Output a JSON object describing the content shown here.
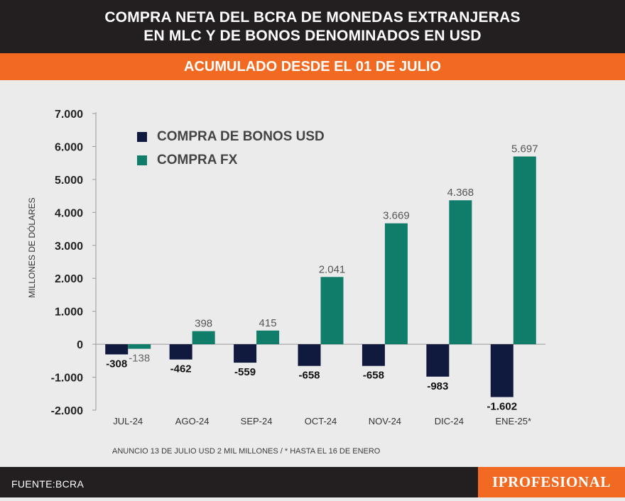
{
  "header": {
    "title_line1": "COMPRA NETA DEL BCRA DE MONEDAS EXTRANJERAS",
    "title_line2": "EN MLC Y DE BONOS DENOMINADOS EN USD",
    "subtitle": "ACUMULADO DESDE EL 01 DE JULIO"
  },
  "chart_data": {
    "type": "bar",
    "categories": [
      "JUL-24",
      "AGO-24",
      "SEP-24",
      "OCT-24",
      "NOV-24",
      "DIC-24",
      "ENE-25*"
    ],
    "series": [
      {
        "name": "COMPRA DE BONOS USD",
        "color": "#0f1a3e",
        "values": [
          -308,
          -462,
          -559,
          -658,
          -658,
          -983,
          -1602
        ],
        "labels": [
          "-308",
          "-462",
          "-559",
          "-658",
          "-658",
          "-983",
          "-1.602"
        ]
      },
      {
        "name": "COMPRA FX",
        "color": "#107c6a",
        "values": [
          -138,
          398,
          415,
          2041,
          3669,
          4368,
          5697
        ],
        "labels": [
          "-138",
          "398",
          "415",
          "2.041",
          "3.669",
          "4.368",
          "5.697"
        ]
      }
    ],
    "ylabel": "MILLONES DE DÓLARES",
    "ylim": [
      -2000,
      7000
    ],
    "yticks": [
      -2000,
      -1000,
      0,
      1000,
      2000,
      3000,
      4000,
      5000,
      6000,
      7000
    ],
    "ytick_labels": [
      "-2.000",
      "-1.000",
      "0",
      "1.000",
      "2.000",
      "3.000",
      "4.000",
      "5.000",
      "6.000",
      "7.000"
    ],
    "legend_position": "top-left"
  },
  "note": "ANUNCIO 13 DE JULIO USD 2 MIL MILLONES  /  *  HASTA EL 16 DE ENERO",
  "footer": {
    "source": "FUENTE:BCRA",
    "brand": "IPROFESIONAL"
  }
}
